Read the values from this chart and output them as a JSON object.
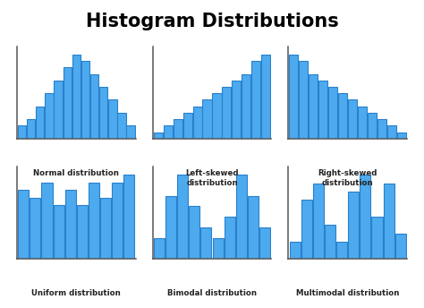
{
  "title": "Histogram Distributions",
  "title_fontsize": 15,
  "title_fontweight": "bold",
  "bar_color": "#4DAAEE",
  "bar_edgecolor": "#2980CC",
  "background_color": "#FFFFFF",
  "subplots": [
    {
      "label": "Normal distribution",
      "values": [
        2,
        3,
        5,
        7,
        9,
        11,
        13,
        12,
        10,
        8,
        6,
        4,
        2
      ]
    },
    {
      "label": "Left-skewed\ndistribution",
      "values": [
        1,
        2,
        3,
        4,
        5,
        6,
        7,
        8,
        9,
        10,
        12,
        13
      ]
    },
    {
      "label": "Right-skewed\ndistribution",
      "values": [
        13,
        12,
        10,
        9,
        8,
        7,
        6,
        5,
        4,
        3,
        2,
        1
      ]
    },
    {
      "label": "Uniform distribution",
      "values": [
        9,
        8,
        10,
        7,
        9,
        7,
        10,
        8,
        10,
        11
      ]
    },
    {
      "label": "Bimodal distribution",
      "values": [
        2,
        6,
        8,
        5,
        3,
        2,
        4,
        8,
        6,
        3
      ]
    },
    {
      "label": "Multimodal distribution",
      "values": [
        2,
        7,
        9,
        4,
        2,
        8,
        10,
        5,
        9,
        3
      ]
    }
  ]
}
